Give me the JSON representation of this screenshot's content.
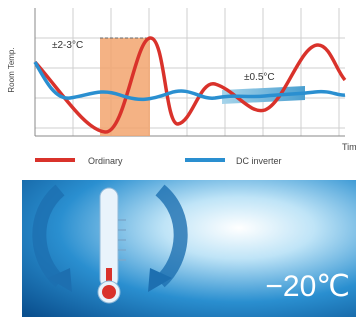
{
  "chart": {
    "y_label": "Room Temp.",
    "x_label": "Tim",
    "annotations": [
      "±2-3°C",
      "±0.5°C"
    ],
    "legend": [
      "Ordinary",
      "DC inverter"
    ]
  },
  "banner": {
    "temperature": "−20℃"
  }
}
